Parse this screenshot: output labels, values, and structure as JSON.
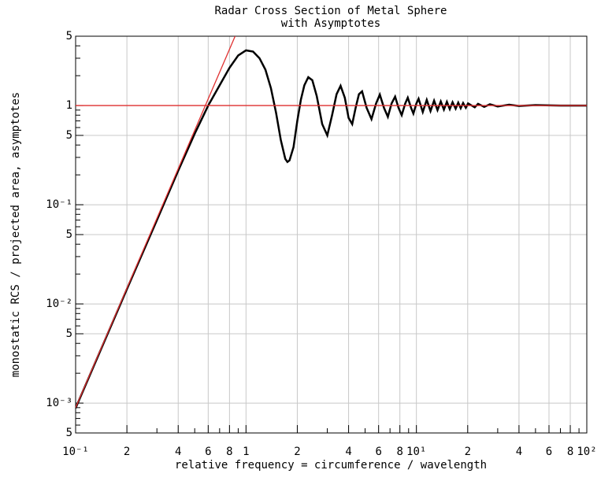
{
  "chart_data": {
    "type": "line",
    "title": "Radar Cross Section of Metal Sphere",
    "subtitle": "with Asymptotes",
    "xlabel": "relative frequency = circumference / wavelength",
    "ylabel": "monostatic RCS / projected area, asymptotes",
    "xscale": "log",
    "yscale": "log",
    "grid": true,
    "xlim": [
      0.1,
      100
    ],
    "ylim": [
      0.0005,
      5
    ],
    "xticks": [
      {
        "value": 0.1,
        "label": "10⁻¹"
      },
      {
        "value": 0.2,
        "label": "2"
      },
      {
        "value": 0.4,
        "label": "4"
      },
      {
        "value": 0.6,
        "label": "6"
      },
      {
        "value": 0.8,
        "label": "8"
      },
      1,
      2,
      4,
      6,
      8,
      {
        "value": 10,
        "label": "10¹"
      },
      {
        "value": 20,
        "label": "2"
      },
      {
        "value": 40,
        "label": "4"
      },
      {
        "value": 60,
        "label": "6"
      },
      {
        "value": 80,
        "label": "8"
      },
      {
        "value": 100,
        "label": "10²"
      }
    ],
    "xminorticks": [
      0.3,
      0.5,
      0.7,
      0.9,
      3,
      5,
      7,
      9,
      30,
      50,
      70,
      90
    ],
    "yticks": [
      {
        "value": 0.0005,
        "label": "5"
      },
      {
        "value": 0.001,
        "label": "10⁻³"
      },
      {
        "value": 0.005,
        "label": "5"
      },
      {
        "value": 0.01,
        "label": "10⁻²"
      },
      {
        "value": 0.05,
        "label": "5"
      },
      {
        "value": 0.1,
        "label": "10⁻¹"
      },
      {
        "value": 0.5,
        "label": "5"
      },
      1,
      5
    ],
    "yminorticks": [
      0.0006,
      0.0007,
      0.0008,
      0.0009,
      0.002,
      0.003,
      0.004,
      0.006,
      0.007,
      0.008,
      0.009,
      0.02,
      0.03,
      0.04,
      0.06,
      0.07,
      0.08,
      0.09,
      0.2,
      0.3,
      0.4,
      0.6,
      0.7,
      0.8,
      0.9,
      2,
      3,
      4
    ],
    "series": [
      {
        "color": "#000000",
        "x": [
          0.1,
          0.2,
          0.3,
          0.4,
          0.5,
          0.6,
          0.7,
          0.8,
          0.9,
          1.0,
          1.1,
          1.2,
          1.3,
          1.4,
          1.5,
          1.6,
          1.7,
          1.75,
          1.8,
          1.9,
          2.0,
          2.1,
          2.2,
          2.32,
          2.45,
          2.6,
          2.8,
          3.0,
          3.2,
          3.4,
          3.59,
          3.8,
          4.0,
          4.2,
          4.4,
          4.6,
          4.8,
          5.1,
          5.45,
          5.8,
          6.1,
          6.45,
          6.8,
          7.15,
          7.5,
          7.85,
          8.2,
          8.6,
          8.9,
          9.3,
          9.6,
          10.0,
          10.3,
          10.9,
          11.5,
          12.1,
          12.7,
          13.3,
          13.9,
          14.5,
          15.1,
          15.7,
          16.3,
          17,
          17.6,
          18.2,
          18.8,
          19.5,
          20.1,
          22,
          23,
          25,
          27,
          30,
          35,
          40,
          50,
          70,
          100
        ],
        "values": [
          0.00089,
          0.0141,
          0.07,
          0.22,
          0.52,
          1.0,
          1.6,
          2.4,
          3.2,
          3.6,
          3.5,
          3.0,
          2.3,
          1.5,
          0.85,
          0.45,
          0.29,
          0.27,
          0.28,
          0.38,
          0.7,
          1.15,
          1.6,
          1.93,
          1.8,
          1.25,
          0.65,
          0.5,
          0.8,
          1.3,
          1.58,
          1.2,
          0.75,
          0.65,
          0.95,
          1.3,
          1.39,
          0.95,
          0.73,
          1.05,
          1.29,
          0.95,
          0.77,
          1.05,
          1.23,
          0.95,
          0.8,
          1.05,
          1.2,
          0.95,
          0.83,
          1.05,
          1.17,
          0.86,
          1.14,
          0.88,
          1.12,
          0.9,
          1.1,
          0.91,
          1.09,
          0.92,
          1.08,
          0.93,
          1.07,
          0.94,
          1.06,
          0.95,
          1.05,
          0.96,
          1.04,
          0.97,
          1.03,
          0.98,
          1.02,
          0.99,
          1.01,
          1.0,
          1.0
        ]
      },
      {
        "color": "#e03030",
        "x": [
          0.1,
          0.863
        ],
        "values": [
          0.0009,
          5
        ]
      },
      {
        "color": "#e03030",
        "x": [
          0.1,
          100
        ],
        "values": [
          1,
          1
        ]
      }
    ]
  }
}
